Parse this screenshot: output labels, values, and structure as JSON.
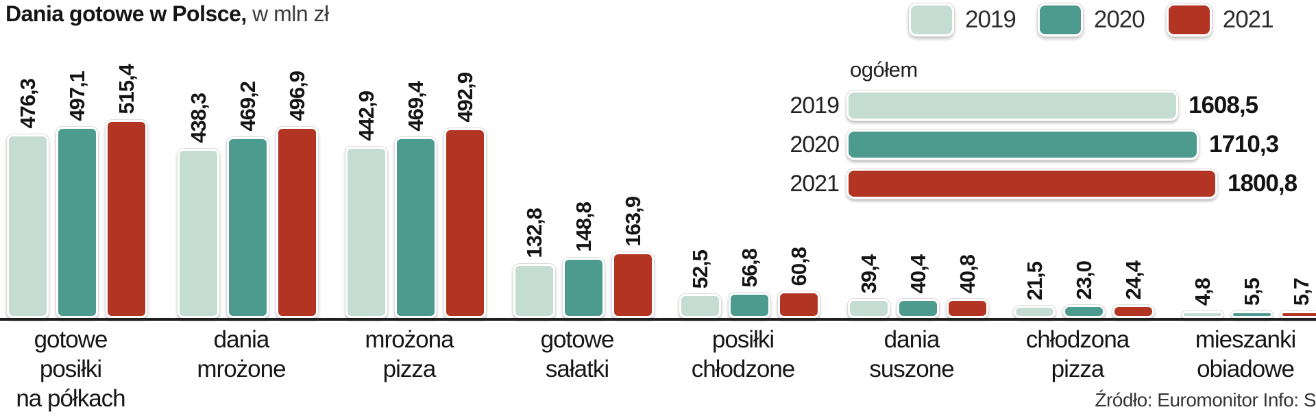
{
  "title": {
    "main": "Dania gotowe w Polsce,",
    "unit": " w mln zł"
  },
  "legend": {
    "items": [
      {
        "label": "2019",
        "color": "#c5dcd2"
      },
      {
        "label": "2020",
        "color": "#4d9b8f"
      },
      {
        "label": "2021",
        "color": "#b23422"
      }
    ]
  },
  "source": "Źródło: Euromonitor  Info: S",
  "chart_data": {
    "type": "bar",
    "title": "Dania gotowe w Polsce",
    "unit": "mln zł",
    "legend_position": "top-right",
    "grid": false,
    "categories": [
      [
        "gotowe",
        "posiłki",
        "na półkach"
      ],
      [
        "dania",
        "mrożone"
      ],
      [
        "mrożona",
        "pizza"
      ],
      [
        "gotowe",
        "sałatki"
      ],
      [
        "posiłki",
        "chłodzone"
      ],
      [
        "dania",
        "suszone"
      ],
      [
        "chłodzona",
        "pizza"
      ],
      [
        "mieszanki",
        "obiadowe"
      ]
    ],
    "series": [
      {
        "name": "2019",
        "color": "#c5dcd2",
        "values": [
          476.3,
          438.3,
          442.9,
          132.8,
          52.5,
          39.4,
          21.5,
          4.8
        ],
        "labels": [
          "476,3",
          "438,3",
          "442,9",
          "132,8",
          "52,5",
          "39,4",
          "21,5",
          "4,8"
        ]
      },
      {
        "name": "2020",
        "color": "#4d9b8f",
        "values": [
          497.1,
          469.2,
          469.4,
          148.8,
          56.8,
          40.4,
          23.0,
          5.5
        ],
        "labels": [
          "497,1",
          "469,2",
          "469,4",
          "148,8",
          "56,8",
          "40,4",
          "23,0",
          "5,5"
        ]
      },
      {
        "name": "2021",
        "color": "#b23422",
        "values": [
          515.4,
          496.9,
          492.9,
          163.9,
          60.8,
          40.8,
          24.4,
          5.7
        ],
        "labels": [
          "515,4",
          "496,9",
          "492,9",
          "163,9",
          "60,8",
          "40,8",
          "24,4",
          "5,7"
        ]
      }
    ],
    "totals": {
      "label": "ogółem",
      "rows": [
        {
          "year": "2019",
          "value": 1608.5,
          "label": "1608,5",
          "color": "#c5dcd2"
        },
        {
          "year": "2020",
          "value": 1710.3,
          "label": "1710,3",
          "color": "#4d9b8f"
        },
        {
          "year": "2021",
          "value": 1800.8,
          "label": "1800,8",
          "color": "#b23422"
        }
      ]
    }
  }
}
